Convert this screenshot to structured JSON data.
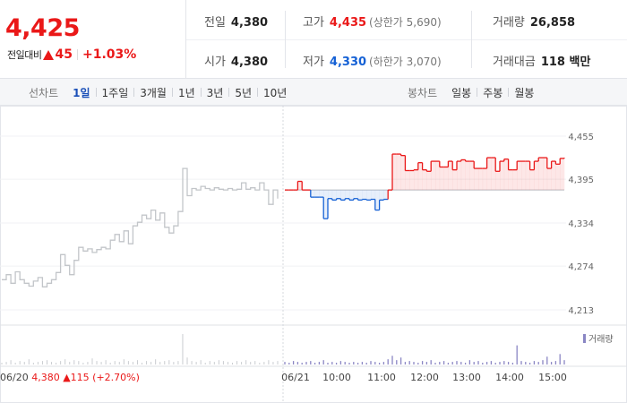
{
  "header": {
    "price": "4,425",
    "change_label": "전일대비",
    "change_amount": "45",
    "change_pct": "+1.03%"
  },
  "stats": {
    "prev_close": {
      "label": "전일",
      "value": "4,380"
    },
    "high": {
      "label": "고가",
      "value": "4,435",
      "sub": "(상한가 5,690)"
    },
    "volume": {
      "label": "거래량",
      "value": "26,858"
    },
    "open": {
      "label": "시가",
      "value": "4,380"
    },
    "low": {
      "label": "저가",
      "value": "4,330",
      "sub": "(하한가 3,070)"
    },
    "amount": {
      "label": "거래대금",
      "value": "118 백만"
    }
  },
  "colors": {
    "up": "#ea1818",
    "down": "#1561d5",
    "accent": "#1a4fb8",
    "prev_day_line": "#c2c5c9"
  },
  "tabs": {
    "line_title": "선차트",
    "line_tabs": [
      "1일",
      "1주일",
      "3개월",
      "1년",
      "3년",
      "5년",
      "10년"
    ],
    "line_active": 0,
    "candle_title": "봉차트",
    "candle_tabs": [
      "일봉",
      "주봉",
      "월봉"
    ]
  },
  "chart_data": {
    "type": "line",
    "y_ticks": [
      "4,455",
      "4,395",
      "4,334",
      "4,274",
      "4,213"
    ],
    "ylim": [
      4203,
      4460
    ],
    "reference_price": 4380,
    "x_labels": [
      "06/21",
      "10:00",
      "11:00",
      "12:00",
      "13:00",
      "14:00",
      "15:00"
    ],
    "volume_legend": "거래량",
    "previous_day": {
      "date": "06/20",
      "close": "4,380",
      "change": "115",
      "change_pct": "(+2.70%)",
      "values": [
        4255,
        4262,
        4250,
        4266,
        4255,
        4250,
        4246,
        4253,
        4258,
        4245,
        4250,
        4255,
        4265,
        4290,
        4275,
        4262,
        4282,
        4300,
        4295,
        4298,
        4293,
        4297,
        4300,
        4298,
        4310,
        4318,
        4308,
        4323,
        4305,
        4330,
        4335,
        4345,
        4340,
        4352,
        4338,
        4348,
        4328,
        4320,
        4330,
        4350,
        4410,
        4372,
        4382,
        4380,
        4385,
        4382,
        4380,
        4383,
        4381,
        4380,
        4382,
        4380,
        4381,
        4390,
        4381,
        4383,
        4380,
        4390,
        4380,
        4360,
        4380,
        4368
      ],
      "volume": [
        2,
        3,
        5,
        2,
        4,
        3,
        6,
        2,
        3,
        4,
        5,
        3,
        2,
        4,
        6,
        3,
        5,
        4,
        2,
        3,
        7,
        4,
        3,
        5,
        2,
        4,
        3,
        6,
        4,
        3,
        5,
        2,
        4,
        3,
        6,
        3,
        4,
        5,
        3,
        4,
        35,
        8,
        4,
        3,
        5,
        2,
        4,
        3,
        5,
        4,
        3,
        2,
        4,
        3,
        5,
        3,
        4,
        2,
        3,
        5,
        3,
        4
      ]
    },
    "today": {
      "values": [
        4380,
        4380,
        4380,
        4392,
        4380,
        4380,
        4370,
        4370,
        4370,
        4340,
        4368,
        4366,
        4368,
        4366,
        4368,
        4366,
        4368,
        4366,
        4367,
        4366,
        4367,
        4352,
        4366,
        4367,
        4380,
        4430,
        4430,
        4428,
        4407,
        4407,
        4408,
        4418,
        4408,
        4406,
        4420,
        4420,
        4412,
        4412,
        4420,
        4408,
        4420,
        4422,
        4420,
        4420,
        4410,
        4410,
        4410,
        4425,
        4425,
        4406,
        4420,
        4423,
        4408,
        4408,
        4420,
        4420,
        4420,
        4408,
        4420,
        4425,
        4425,
        4410,
        4420,
        4416,
        4424,
        4425
      ],
      "volume": [
        3,
        2,
        4,
        3,
        2,
        3,
        4,
        2,
        3,
        5,
        2,
        3,
        2,
        4,
        3,
        2,
        3,
        2,
        3,
        2,
        4,
        3,
        2,
        3,
        6,
        10,
        5,
        8,
        3,
        4,
        3,
        2,
        4,
        3,
        5,
        2,
        3,
        4,
        2,
        3,
        4,
        3,
        2,
        5,
        3,
        4,
        2,
        3,
        4,
        2,
        3,
        4,
        3,
        2,
        22,
        4,
        3,
        2,
        4,
        3,
        5,
        9,
        3,
        4,
        12,
        5
      ]
    }
  }
}
